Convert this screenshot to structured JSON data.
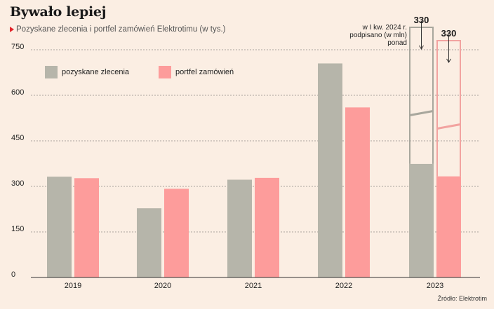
{
  "chart_data": {
    "type": "bar",
    "title": "Bywało lepiej",
    "subtitle": "Pozyskane zlecenia i portfel zamówień Elektrotimu (w tys.)",
    "categories": [
      "2019",
      "2020",
      "2021",
      "2022",
      "2023"
    ],
    "series": [
      {
        "name": "pozyskane zlecenia",
        "color": "#b6b5aa",
        "values": [
          332,
          228,
          322,
          705,
          374
        ]
      },
      {
        "name": "portfel zamówień",
        "color": "#fd9c9b",
        "values": [
          327,
          292,
          328,
          560,
          333
        ]
      }
    ],
    "ylim": [
      0,
      780
    ],
    "yticks": [
      0,
      150,
      300,
      450,
      600,
      750
    ],
    "grid": true,
    "legend_position": "top-left",
    "annotation": {
      "text_lines": [
        "w I kw. 2024 r.",
        "podpisano (w mln)",
        "ponad"
      ],
      "values": [
        {
          "series": "pozyskane zlecenia",
          "label": "330",
          "from": 374,
          "to": 830
        },
        {
          "series": "portfel zamówień",
          "label": "330",
          "from": 333,
          "to": 780
        }
      ]
    },
    "source": "Źródło: Elektrotim"
  }
}
